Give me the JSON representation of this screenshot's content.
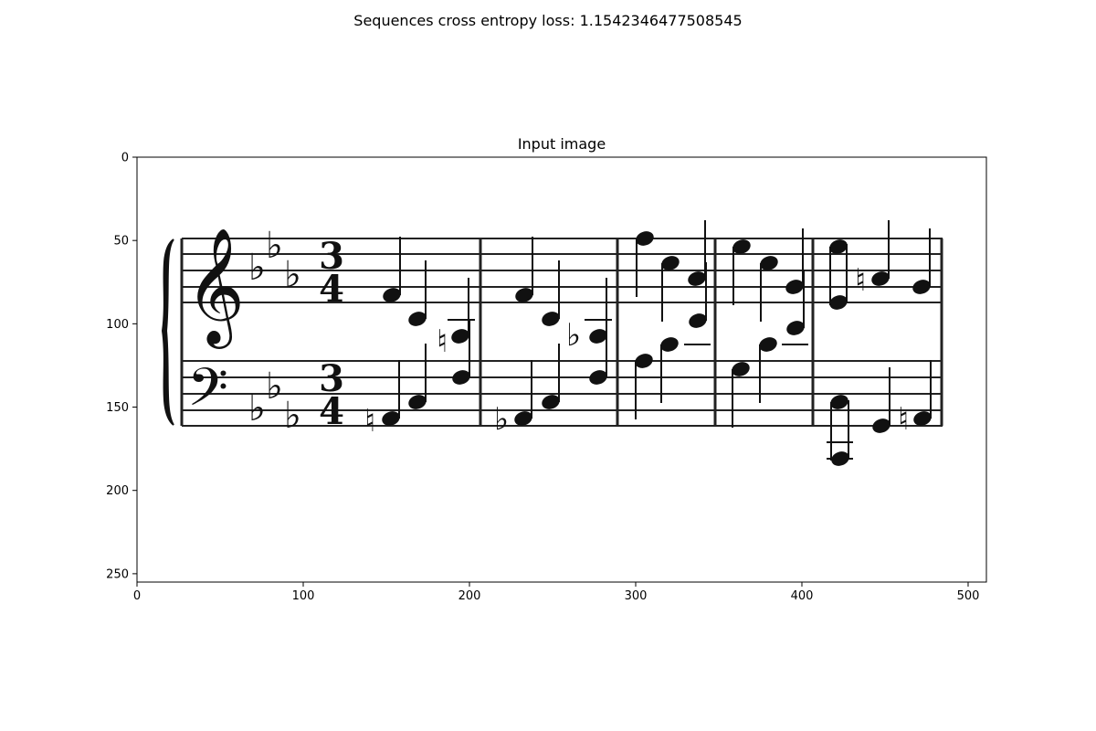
{
  "figure": {
    "suptitle": "Sequences cross entropy loss: 1.1542346477508545"
  },
  "chart_data": {
    "type": "image",
    "title": "Input image",
    "xlabel": "",
    "ylabel": "",
    "xlim": [
      0,
      511
    ],
    "ylim": [
      255,
      0
    ],
    "x_ticks": [
      0,
      100,
      200,
      300,
      400,
      500
    ],
    "y_ticks": [
      0,
      50,
      100,
      150,
      200,
      250
    ],
    "grid": false,
    "image_content": "two-staff piano score excerpt, key signature of three flats, time signature 3/4, five measures",
    "key_signature": "3 flats",
    "time_signature": [
      "3",
      "4"
    ],
    "measures": 5
  }
}
